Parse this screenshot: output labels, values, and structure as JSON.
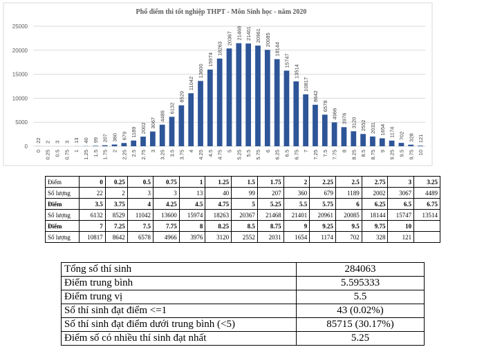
{
  "chart_data": {
    "type": "bar",
    "title": "Phổ điểm thi tốt nghiệp THPT - Môn Sinh học - năm 2020",
    "categories": [
      "0",
      "0.25",
      "0.5",
      "0.75",
      "1",
      "1.25",
      "1.5",
      "1.75",
      "2",
      "2.25",
      "2.5",
      "2.75",
      "3",
      "3.25",
      "3.5",
      "3.75",
      "4",
      "4.25",
      "4.5",
      "4.75",
      "5",
      "5.25",
      "5.5",
      "5.75",
      "6",
      "6.25",
      "6.5",
      "6.75",
      "7",
      "7.25",
      "7.5",
      "7.75",
      "8",
      "8.25",
      "8.5",
      "8.75",
      "9",
      "9.25",
      "9.5",
      "9.75",
      "10"
    ],
    "values": [
      22,
      2,
      3,
      3,
      13,
      40,
      99,
      207,
      360,
      679,
      1189,
      2002,
      3067,
      4489,
      6132,
      8529,
      11042,
      13600,
      15974,
      18263,
      20367,
      21468,
      21401,
      20961,
      20085,
      18144,
      15747,
      13514,
      10817,
      8642,
      6578,
      4966,
      3976,
      3120,
      2552,
      2031,
      1654,
      1174,
      702,
      328,
      121
    ],
    "color": "#2e5597",
    "ylim": [
      0,
      25000
    ],
    "yticks": [
      0,
      5000,
      10000,
      15000,
      20000,
      25000
    ],
    "grid": true
  },
  "score_table": {
    "rows": [
      [
        "Điểm",
        0,
        0.25,
        0.5,
        0.75,
        1,
        1.25,
        1.5,
        1.75,
        2,
        2.25,
        2.5,
        2.75,
        3,
        3.25
      ],
      [
        "Số lượng",
        22,
        2,
        3,
        3,
        13,
        40,
        99,
        207,
        360,
        679,
        1189,
        2002,
        3067,
        4489
      ],
      [
        "Điểm",
        3.5,
        3.75,
        4,
        4.25,
        4.5,
        4.75,
        5,
        5.25,
        5.5,
        5.75,
        6,
        6.25,
        6.5,
        6.75
      ],
      [
        "Số lượng",
        6132,
        8529,
        11042,
        13600,
        15974,
        18263,
        20367,
        21468,
        21401,
        20961,
        20085,
        18144,
        15747,
        13514
      ],
      [
        "Điểm",
        7,
        7.25,
        7.5,
        7.75,
        8,
        8.25,
        8.5,
        8.75,
        9,
        9.25,
        9.5,
        9.75,
        10
      ],
      [
        "Số lượng",
        10817,
        8642,
        6578,
        4966,
        3976,
        3120,
        2552,
        2031,
        1654,
        1174,
        702,
        328,
        121
      ]
    ]
  },
  "summary_table": {
    "rows": [
      [
        "Tổng số thí sinh",
        "284063"
      ],
      [
        "Điểm trung bình",
        "5.595333"
      ],
      [
        "Điểm trung vị",
        "5.5"
      ],
      [
        "Số thí sinh đạt điểm <=1",
        "43 (0.02%)"
      ],
      [
        "Số thí sinh đạt điểm dưới trung bình (<5)",
        "85715 (30.17%)"
      ],
      [
        "Điểm số có nhiều thí sinh đạt nhất",
        "5.25"
      ]
    ]
  }
}
